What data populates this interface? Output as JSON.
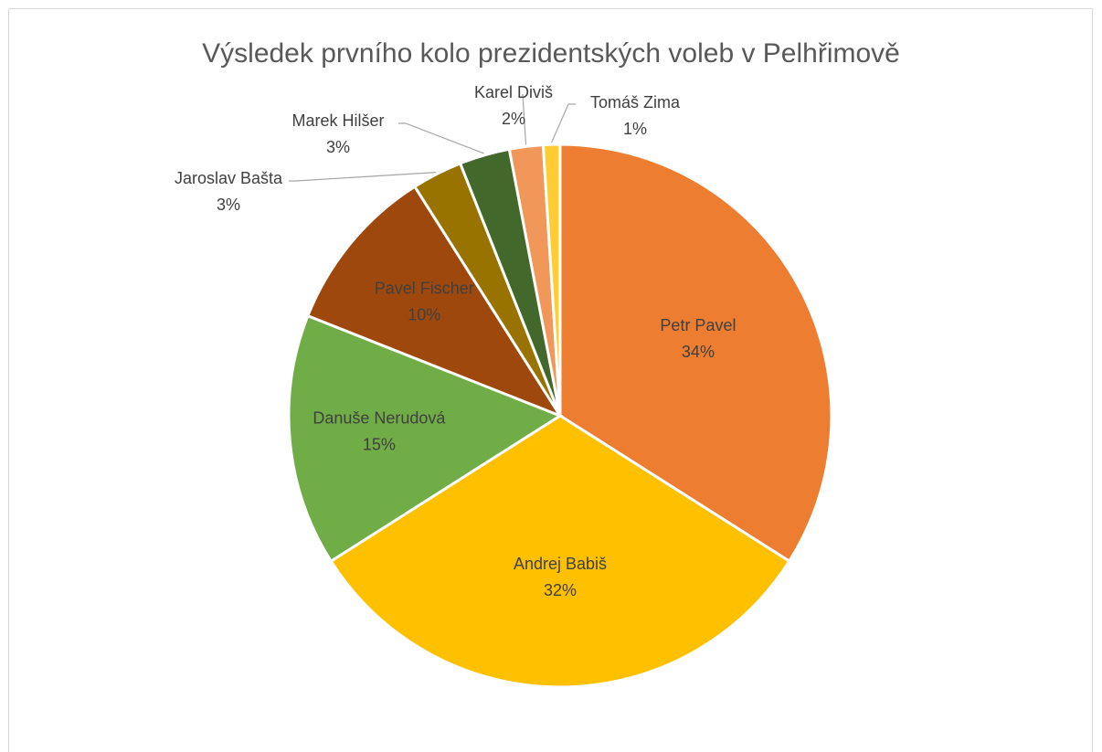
{
  "chart_data": {
    "type": "pie",
    "title": "Výsledek prvního kolo prezidentských voleb v Pelhřimově",
    "categories": [
      "Petr Pavel",
      "Andrej Babiš",
      "Danuše Nerudová",
      "Pavel Fischer",
      "Jaroslav Bašta",
      "Marek Hilšer",
      "Karel Diviš",
      "Tomáš Zima"
    ],
    "values": [
      34,
      32,
      15,
      10,
      3,
      3,
      2,
      1
    ],
    "value_labels": [
      "34%",
      "32%",
      "15%",
      "10%",
      "3%",
      "3%",
      "2%",
      "1%"
    ],
    "colors": [
      "#ed7d31",
      "#ffc000",
      "#70ad47",
      "#9e480e",
      "#997300",
      "#43682b",
      "#f1975a",
      "#ffcd33"
    ]
  }
}
